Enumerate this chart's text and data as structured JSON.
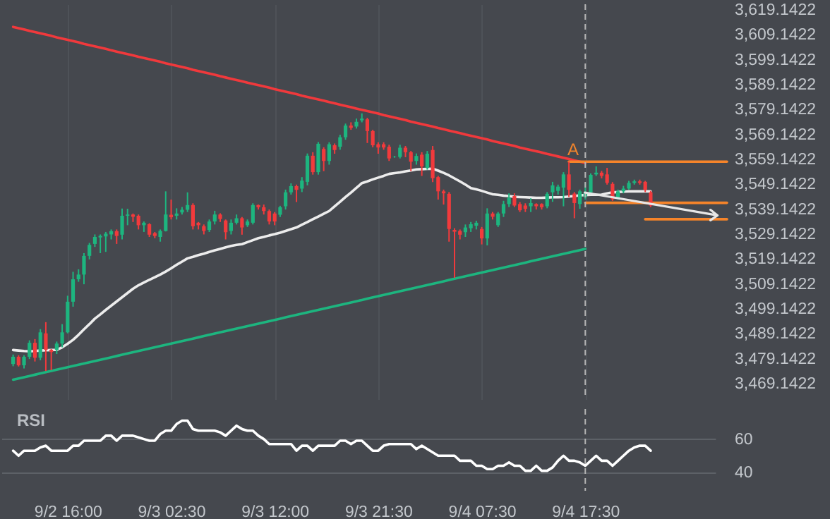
{
  "chart_data": [
    {
      "type": "candlestick",
      "categories": [
        null,
        null,
        null,
        null,
        null,
        null,
        null,
        null,
        null,
        null,
        "9/2 16:00",
        null,
        null,
        null,
        null,
        null,
        null,
        null,
        null,
        null,
        null,
        null,
        null,
        null,
        null,
        null,
        null,
        null,
        null,
        "9/3 02:30",
        null,
        null,
        null,
        null,
        null,
        null,
        null,
        null,
        null,
        null,
        null,
        null,
        null,
        null,
        null,
        null,
        null,
        null,
        "9/3 12:00",
        null,
        null,
        null,
        null,
        null,
        null,
        null,
        null,
        null,
        null,
        null,
        null,
        null,
        null,
        null,
        null,
        null,
        null,
        "9/3 21:30",
        null,
        null,
        null,
        null,
        null,
        null,
        null,
        null,
        null,
        null,
        null,
        null,
        null,
        null,
        null,
        null,
        null,
        null,
        "9/4 07:30",
        null,
        null,
        null,
        null,
        null,
        null,
        null,
        null,
        null,
        null,
        null,
        null,
        null,
        null,
        null,
        null,
        null,
        null,
        "9/4 17:30",
        null,
        null,
        null,
        null,
        null,
        null,
        null,
        null,
        null,
        null,
        null,
        null,
        null,
        null,
        null,
        null,
        null,
        null,
        null,
        null,
        null,
        null,
        null,
        null,
        null,
        null
      ],
      "ohlc": [
        [
          3477.0,
          3480.8,
          3476.1,
          3479.9
        ],
        [
          3479.9,
          3480.5,
          3476.0,
          3476.5
        ],
        [
          3476.5,
          3480.5,
          3475.2,
          3479.9
        ],
        [
          3479.9,
          3486.5,
          3479.0,
          3485.5
        ],
        [
          3485.5,
          3487.0,
          3478.0,
          3479.5
        ],
        [
          3479.5,
          3491.0,
          3478.5,
          3489.7
        ],
        [
          3489.3,
          3493.8,
          3474.2,
          3482.7
        ],
        [
          3482.7,
          3483.0,
          3474.5,
          3481.8
        ],
        [
          3482.7,
          3486.0,
          3481.0,
          3485.2
        ],
        [
          3485.2,
          3493.0,
          3483.7,
          3489.7
        ],
        [
          3489.7,
          3504.4,
          3489.3,
          3502.0
        ],
        [
          3502.0,
          3514.0,
          3500.0,
          3511.0
        ],
        [
          3511.0,
          3515.0,
          3510.0,
          3512.9
        ],
        [
          3512.9,
          3521.5,
          3509.0,
          3520.4
        ],
        [
          3520.4,
          3525.6,
          3519.0,
          3524.8
        ],
        [
          3525.2,
          3529.0,
          3524.0,
          3528.0
        ],
        [
          3527.8,
          3529.0,
          3521.5,
          3528.4
        ],
        [
          3528.2,
          3530.0,
          3522.0,
          3529.3
        ],
        [
          3529.0,
          3531.0,
          3527.0,
          3530.3
        ],
        [
          3530.3,
          3531.0,
          3525.2,
          3528.4
        ],
        [
          3528.9,
          3539.4,
          3527.0,
          3536.5
        ],
        [
          3536.5,
          3539.3,
          3532.7,
          3537.0
        ],
        [
          3537.0,
          3537.4,
          3534.0,
          3536.1
        ],
        [
          3536.5,
          3537.0,
          3531.0,
          3532.7
        ],
        [
          3532.7,
          3534.2,
          3530.0,
          3533.7
        ],
        [
          3533.1,
          3533.5,
          3528.0,
          3528.9
        ],
        [
          3529.5,
          3530.0,
          3527.5,
          3528.4
        ],
        [
          3528.0,
          3531.0,
          3526.1,
          3530.4
        ],
        [
          3530.4,
          3546.3,
          3530.2,
          3537.0
        ],
        [
          3536.9,
          3543.0,
          3535.0,
          3535.9
        ],
        [
          3536.5,
          3539.5,
          3535.0,
          3537.4
        ],
        [
          3537.8,
          3540.0,
          3537.0,
          3538.9
        ],
        [
          3538.9,
          3545.9,
          3538.0,
          3540.8
        ],
        [
          3540.8,
          3541.5,
          3531.0,
          3532.3
        ],
        [
          3533.7,
          3534.0,
          3531.0,
          3532.7
        ],
        [
          3532.3,
          3533.0,
          3529.0,
          3530.4
        ],
        [
          3530.8,
          3535.0,
          3530.0,
          3534.2
        ],
        [
          3534.2,
          3538.5,
          3533.0,
          3537.0
        ],
        [
          3537.0,
          3537.5,
          3534.0,
          3535.2
        ],
        [
          3534.6,
          3535.0,
          3527.0,
          3529.9
        ],
        [
          3530.4,
          3535.0,
          3529.0,
          3533.7
        ],
        [
          3533.7,
          3537.0,
          3533.0,
          3535.5
        ],
        [
          3535.5,
          3536.0,
          3528.9,
          3531.8
        ],
        [
          3532.7,
          3535.0,
          3532.0,
          3534.2
        ],
        [
          3533.7,
          3541.5,
          3533.0,
          3540.8
        ],
        [
          3540.8,
          3541.0,
          3539.0,
          3539.9
        ],
        [
          3539.9,
          3541.0,
          3537.0,
          3538.4
        ],
        [
          3538.4,
          3539.0,
          3533.0,
          3534.2
        ],
        [
          3537.4,
          3538.0,
          3532.7,
          3534.2
        ],
        [
          3536.9,
          3540.5,
          3536.0,
          3539.9
        ],
        [
          3540.3,
          3547.0,
          3539.0,
          3545.9
        ],
        [
          3545.9,
          3549.5,
          3545.0,
          3548.4
        ],
        [
          3548.4,
          3549.0,
          3542.0,
          3546.9
        ],
        [
          3547.4,
          3552.0,
          3546.0,
          3550.6
        ],
        [
          3550.1,
          3561.5,
          3548.7,
          3560.6
        ],
        [
          3560.6,
          3562.0,
          3553.0,
          3554.0
        ],
        [
          3554.0,
          3566.1,
          3553.0,
          3565.4
        ],
        [
          3563.3,
          3564.0,
          3554.4,
          3558.5
        ],
        [
          3558.5,
          3566.0,
          3557.0,
          3565.2
        ],
        [
          3564.8,
          3565.5,
          3561.4,
          3562.9
        ],
        [
          3564.2,
          3569.0,
          3563.0,
          3568.0
        ],
        [
          3568.0,
          3573.5,
          3567.0,
          3572.7
        ],
        [
          3572.7,
          3574.0,
          3571.0,
          3571.8
        ],
        [
          3572.3,
          3575.5,
          3571.5,
          3574.2
        ],
        [
          3574.8,
          3577.6,
          3574.0,
          3575.5
        ],
        [
          3575.2,
          3575.8,
          3565.7,
          3570.5
        ],
        [
          3570.5,
          3571.0,
          3564.0,
          3564.8
        ],
        [
          3565.2,
          3566.0,
          3561.4,
          3563.9
        ],
        [
          3565.2,
          3566.0,
          3563.0,
          3563.9
        ],
        [
          3564.2,
          3565.0,
          3558.5,
          3559.5
        ],
        [
          3560.1,
          3560.5,
          3559.8,
          3560.2
        ],
        [
          3560.1,
          3565.0,
          3559.5,
          3563.8
        ],
        [
          3563.8,
          3564.5,
          3560.0,
          3562.0
        ],
        [
          3562.0,
          3562.5,
          3554.4,
          3558.2
        ],
        [
          3558.5,
          3561.5,
          3557.0,
          3560.5
        ],
        [
          3561.0,
          3562.0,
          3552.5,
          3556.3
        ],
        [
          3555.7,
          3562.5,
          3555.0,
          3561.4
        ],
        [
          3562.9,
          3564.5,
          3550.0,
          3551.6
        ],
        [
          3552.0,
          3552.5,
          3543.0,
          3546.3
        ],
        [
          3546.3,
          3547.0,
          3541.0,
          3545.5
        ],
        [
          3545.3,
          3546.0,
          3526.1,
          3531.2
        ],
        [
          3530.8,
          3531.5,
          3511.6,
          3530.1
        ],
        [
          3530.4,
          3531.0,
          3527.0,
          3528.9
        ],
        [
          3529.9,
          3533.0,
          3528.0,
          3531.8
        ],
        [
          3531.5,
          3534.0,
          3530.0,
          3533.1
        ],
        [
          3532.5,
          3534.5,
          3531.0,
          3533.7
        ],
        [
          3531.2,
          3532.0,
          3525.0,
          3527.4
        ],
        [
          3527.4,
          3539.5,
          3524.6,
          3537.4
        ],
        [
          3537.4,
          3538.0,
          3535.0,
          3536.1
        ],
        [
          3532.7,
          3538.0,
          3532.0,
          3537.4
        ],
        [
          3537.4,
          3542.5,
          3536.0,
          3541.2
        ],
        [
          3541.2,
          3545.5,
          3540.0,
          3543.7
        ],
        [
          3544.4,
          3545.5,
          3540.0,
          3540.6
        ],
        [
          3541.2,
          3542.0,
          3538.0,
          3538.7
        ],
        [
          3540.6,
          3541.5,
          3538.0,
          3539.3
        ],
        [
          3540.3,
          3543.5,
          3538.0,
          3541.6
        ],
        [
          3541.2,
          3541.5,
          3539.0,
          3540.3
        ],
        [
          3541.2,
          3541.5,
          3539.0,
          3539.9
        ],
        [
          3540.3,
          3546.0,
          3539.5,
          3545.3
        ],
        [
          3545.9,
          3550.1,
          3542.1,
          3548.7
        ],
        [
          3546.5,
          3549.0,
          3545.0,
          3548.2
        ],
        [
          3547.8,
          3554.0,
          3540.3,
          3553.1
        ],
        [
          3553.1,
          3558.2,
          3544.0,
          3546.9
        ],
        [
          3545.4,
          3546.0,
          3535.5,
          3541.6
        ],
        [
          3541.2,
          3547.0,
          3539.3,
          3546.3
        ],
        [
          3544.0,
          3549.7,
          3543.0,
          3545.9
        ],
        [
          3545.9,
          3553.5,
          3545.0,
          3552.9
        ],
        [
          3553.1,
          3556.3,
          3552.5,
          3553.8
        ],
        [
          3553.8,
          3554.5,
          3551.5,
          3552.5
        ],
        [
          3553.1,
          3555.7,
          3549.0,
          3549.7
        ],
        [
          3549.3,
          3550.0,
          3542.5,
          3543.1
        ],
        [
          3543.7,
          3547.0,
          3543.0,
          3546.3
        ],
        [
          3546.3,
          3548.5,
          3545.5,
          3547.4
        ],
        [
          3547.4,
          3550.5,
          3547.0,
          3549.7
        ],
        [
          3549.7,
          3551.0,
          3549.0,
          3550.3
        ],
        [
          3550.3,
          3551.0,
          3549.0,
          3549.7
        ],
        [
          3550.1,
          3550.5,
          3546.0,
          3546.9
        ],
        [
          3545.9,
          3546.5,
          3540.0,
          3540.6
        ],
        null,
        null,
        null,
        null,
        null,
        null,
        null,
        null,
        null,
        null,
        null,
        null,
        null,
        null
      ],
      "colors": [
        "#1db57f",
        "#f23a3c",
        "#1db57f",
        "#1db57f",
        "#f23a3c",
        "#1db57f",
        "#f23a3c",
        "#f23a3c",
        "#1db57f",
        "#1db57f",
        "#1db57f",
        "#1db57f",
        "#1db57f",
        "#1db57f",
        "#1db57f",
        "#1db57f",
        "#1db57f",
        "#1db57f",
        "#1db57f",
        "#f23a3c",
        "#1db57f",
        "#1db57f",
        "#f23a3c",
        "#f23a3c",
        "#1db57f",
        "#f23a3c",
        "#f23a3c",
        "#1db57f",
        "#1db57f",
        "#f23a3c",
        "#1db57f",
        "#1db57f",
        "#1db57f",
        "#f23a3c",
        "#f23a3c",
        "#f23a3c",
        "#1db57f",
        "#1db57f",
        "#f23a3c",
        "#f23a3c",
        "#1db57f",
        "#1db57f",
        "#f23a3c",
        "#1db57f",
        "#1db57f",
        "#f23a3c",
        "#f23a3c",
        "#f23a3c",
        "#f23a3c",
        "#1db57f",
        "#1db57f",
        "#1db57f",
        "#f23a3c",
        "#1db57f",
        "#1db57f",
        "#f23a3c",
        "#1db57f",
        "#f23a3c",
        "#1db57f",
        "#f23a3c",
        "#1db57f",
        "#1db57f",
        "#f23a3c",
        "#1db57f",
        "#1db57f",
        "#f23a3c",
        "#f23a3c",
        "#f23a3c",
        "#f23a3c",
        "#f23a3c",
        "#1db57f",
        "#1db57f",
        "#f23a3c",
        "#f23a3c",
        "#1db57f",
        "#f23a3c",
        "#1db57f",
        "#f23a3c",
        "#f23a3c",
        "#f23a3c",
        "#f23a3c",
        "#f23a3c",
        "#f23a3c",
        "#1db57f",
        "#1db57f",
        "#1db57f",
        "#f23a3c",
        "#1db57f",
        "#f23a3c",
        "#1db57f",
        "#1db57f",
        "#1db57f",
        "#f23a3c",
        "#f23a3c",
        "#f23a3c",
        "#1db57f",
        "#f23a3c",
        "#f23a3c",
        "#1db57f",
        "#1db57f",
        "#1db57f",
        "#1db57f",
        "#f23a3c",
        "#f23a3c",
        "#1db57f",
        "#1db57f",
        "#1db57f",
        "#1db57f",
        "#f23a3c",
        "#f23a3c",
        "#f23a3c",
        "#1db57f",
        "#1db57f",
        "#1db57f",
        "#1db57f",
        "#f23a3c",
        "#f23a3c",
        "#f23a3c",
        null,
        null,
        null,
        null,
        null,
        null,
        null,
        null,
        null,
        null,
        null,
        null,
        null,
        null
      ],
      "series": [
        {
          "type": "line",
          "color": "#ececec",
          "values": [
            3482.6,
            3482.4,
            3482.2,
            3482.1,
            3482.2,
            3482.4,
            3482.5,
            3482.6,
            3482.7,
            3483.7,
            3485.1,
            3486.7,
            3488.7,
            3490.9,
            3493.0,
            3495.2,
            3496.9,
            3498.7,
            3500.4,
            3502.1,
            3503.8,
            3505.5,
            3507.2,
            3508.6,
            3509.7,
            3510.8,
            3511.8,
            3512.9,
            3514.1,
            3515.4,
            3516.8,
            3518.1,
            3519.4,
            3520.0,
            3520.7,
            3521.3,
            3522.0,
            3522.6,
            3523.2,
            3523.8,
            3524.4,
            3524.8,
            3525.1,
            3525.9,
            3526.7,
            3527.5,
            3528.0,
            3528.6,
            3529.1,
            3529.7,
            3530.4,
            3531.1,
            3531.8,
            3532.9,
            3534.0,
            3535.1,
            3536.2,
            3537.3,
            3538.4,
            3540.3,
            3542.1,
            3544.0,
            3545.8,
            3547.7,
            3549.6,
            3550.3,
            3551.1,
            3551.8,
            3552.5,
            3553.3,
            3553.6,
            3553.9,
            3554.3,
            3554.7,
            3555.1,
            3555.2,
            3555.3,
            3555.4,
            3554.6,
            3553.7,
            3552.7,
            3551.5,
            3550.3,
            3549.0,
            3547.6,
            3547.1,
            3546.5,
            3545.8,
            3545.1,
            3544.9,
            3544.6,
            3544.4,
            3544.1,
            3544.0,
            3543.9,
            3543.8,
            3543.7,
            3543.7,
            3543.8,
            3543.9,
            3543.9,
            3544.0,
            3544.2,
            3544.4,
            3544.7,
            3544.8,
            3544.9,
            3544.9,
            3545.0,
            3545.5,
            3545.9,
            3546.0,
            3546.2,
            3546.3,
            3546.3,
            3546.3,
            3546.3,
            3546.3,
            null,
            null,
            null,
            null,
            null,
            null,
            null,
            null,
            null,
            null,
            null,
            null,
            null,
            null
          ]
        },
        {
          "type": "line",
          "color": "#f0393c",
          "values": [
            3612.3,
            3611.8,
            3611.3,
            3610.7,
            3610.2,
            3609.7,
            3609.2,
            3608.7,
            3608.1,
            3607.6,
            3607.1,
            3606.6,
            3606.1,
            3605.5,
            3605.0,
            3604.5,
            3604.0,
            3603.5,
            3602.9,
            3602.4,
            3601.9,
            3601.4,
            3600.9,
            3600.3,
            3599.8,
            3599.3,
            3598.8,
            3598.3,
            3597.7,
            3597.2,
            3596.7,
            3596.2,
            3595.7,
            3595.1,
            3594.6,
            3594.1,
            3593.6,
            3593.1,
            3592.5,
            3592.0,
            3591.5,
            3591.0,
            3590.5,
            3589.9,
            3589.4,
            3588.9,
            3588.4,
            3587.9,
            3587.3,
            3586.8,
            3586.3,
            3585.8,
            3585.3,
            3584.7,
            3584.2,
            3583.7,
            3583.2,
            3582.7,
            3582.1,
            3581.6,
            3581.1,
            3580.6,
            3580.1,
            3579.5,
            3579.0,
            3578.5,
            3578.0,
            3577.5,
            3576.9,
            3576.4,
            3575.9,
            3575.4,
            3574.9,
            3574.3,
            3573.8,
            3573.3,
            3572.8,
            3572.3,
            3571.7,
            3571.2,
            3570.7,
            3570.2,
            3569.7,
            3569.1,
            3568.6,
            3568.1,
            3567.6,
            3567.1,
            3566.5,
            3566.0,
            3565.5,
            3565.0,
            3564.5,
            3563.9,
            3563.4,
            3562.9,
            3562.4,
            3561.9,
            3561.3,
            3560.8,
            3560.3,
            3559.8,
            3559.3,
            3558.7,
            3558.2,
            3557.7,
            null,
            null,
            null,
            null,
            null,
            null,
            null,
            null,
            null,
            null,
            null,
            null,
            null,
            null,
            null,
            null,
            null,
            null,
            null,
            null,
            null,
            null,
            null,
            null,
            null,
            null
          ]
        },
        {
          "type": "line",
          "color": "#1db57f",
          "values": [
            3470.7,
            3471.2,
            3471.7,
            3472.2,
            3472.7,
            3473.2,
            3473.7,
            3474.2,
            3474.7,
            3475.2,
            3475.7,
            3476.2,
            3476.7,
            3477.2,
            3477.7,
            3478.2,
            3478.7,
            3479.2,
            3479.7,
            3480.2,
            3480.7,
            3481.2,
            3481.7,
            3482.2,
            3482.7,
            3483.2,
            3483.7,
            3484.2,
            3484.7,
            3485.2,
            3485.7,
            3486.2,
            3486.7,
            3487.2,
            3487.7,
            3488.2,
            3488.7,
            3489.2,
            3489.7,
            3490.2,
            3490.7,
            3491.2,
            3491.7,
            3492.2,
            3492.7,
            3493.2,
            3493.7,
            3494.2,
            3494.7,
            3495.2,
            3495.7,
            3496.2,
            3496.7,
            3497.2,
            3497.7,
            3498.2,
            3498.7,
            3499.2,
            3499.7,
            3500.2,
            3500.7,
            3501.2,
            3501.7,
            3502.2,
            3502.7,
            3503.2,
            3503.7,
            3504.2,
            3504.7,
            3505.2,
            3505.7,
            3506.2,
            3506.7,
            3507.2,
            3507.7,
            3508.2,
            3508.7,
            3509.2,
            3509.7,
            3510.2,
            3510.7,
            3511.2,
            3511.7,
            3512.2,
            3512.7,
            3513.2,
            3513.7,
            3514.2,
            3514.7,
            3515.2,
            3515.7,
            3516.2,
            3516.7,
            3517.2,
            3517.7,
            3518.2,
            3518.7,
            3519.2,
            3519.7,
            3520.2,
            3520.7,
            3521.2,
            3521.7,
            3522.2,
            3522.7,
            3523.2,
            null,
            null,
            null,
            null,
            null,
            null,
            null,
            null,
            null,
            null,
            null,
            null,
            null,
            null,
            null,
            null,
            null,
            null,
            null,
            null,
            null,
            null,
            null,
            null,
            null,
            null
          ]
        },
        {
          "type": "line",
          "color": "#f5842a",
          "values": [
            null,
            null,
            null,
            null,
            null,
            null,
            null,
            null,
            null,
            null,
            null,
            null,
            null,
            null,
            null,
            null,
            null,
            null,
            null,
            null,
            null,
            null,
            null,
            null,
            null,
            null,
            null,
            null,
            null,
            null,
            null,
            null,
            null,
            null,
            null,
            null,
            null,
            null,
            null,
            null,
            null,
            null,
            null,
            null,
            null,
            null,
            null,
            null,
            null,
            null,
            null,
            null,
            null,
            null,
            null,
            null,
            null,
            null,
            null,
            null,
            null,
            null,
            null,
            null,
            null,
            null,
            null,
            null,
            null,
            null,
            null,
            null,
            null,
            null,
            null,
            null,
            null,
            null,
            null,
            null,
            null,
            null,
            null,
            null,
            null,
            null,
            null,
            null,
            null,
            null,
            null,
            null,
            null,
            null,
            null,
            null,
            null,
            null,
            null,
            null,
            null,
            null,
            3558.2,
            3558.2,
            3558.2,
            3558.2,
            3558.2,
            3558.2,
            3558.2,
            3558.2,
            3558.2,
            3558.2,
            3558.2,
            3558.2,
            3558.2,
            3558.2,
            3558.2,
            3558.2,
            3558.2,
            3558.2,
            3558.2,
            3558.2,
            3558.2,
            3558.2,
            3558.2,
            3558.2,
            3558.2,
            3558.2,
            3558.2,
            3558.2,
            3558.2,
            3558.2
          ]
        },
        {
          "type": "line",
          "color": "#f5842a",
          "values": [
            null,
            null,
            null,
            null,
            null,
            null,
            null,
            null,
            null,
            null,
            null,
            null,
            null,
            null,
            null,
            null,
            null,
            null,
            null,
            null,
            null,
            null,
            null,
            null,
            null,
            null,
            null,
            null,
            null,
            null,
            null,
            null,
            null,
            null,
            null,
            null,
            null,
            null,
            null,
            null,
            null,
            null,
            null,
            null,
            null,
            null,
            null,
            null,
            null,
            null,
            null,
            null,
            null,
            null,
            null,
            null,
            null,
            null,
            null,
            null,
            null,
            null,
            null,
            null,
            null,
            null,
            null,
            null,
            null,
            null,
            null,
            null,
            null,
            null,
            null,
            null,
            null,
            null,
            null,
            null,
            null,
            null,
            null,
            null,
            null,
            null,
            null,
            null,
            null,
            null,
            null,
            null,
            null,
            null,
            null,
            null,
            null,
            null,
            null,
            null,
            null,
            null,
            null,
            null,
            null,
            3541.7,
            3541.7,
            3541.7,
            3541.7,
            3541.7,
            3541.7,
            3541.7,
            3541.7,
            3541.7,
            3541.7,
            3541.7,
            3541.7,
            3541.7,
            3541.7,
            3541.7,
            3541.7,
            3541.7,
            3541.7,
            3541.7,
            3541.7,
            3541.7,
            3541.7,
            3541.7,
            3541.7,
            3541.7,
            3541.7,
            3541.7
          ]
        },
        {
          "type": "line",
          "color": "#f5842a",
          "values": [
            null,
            null,
            null,
            null,
            null,
            null,
            null,
            null,
            null,
            null,
            null,
            null,
            null,
            null,
            null,
            null,
            null,
            null,
            null,
            null,
            null,
            null,
            null,
            null,
            null,
            null,
            null,
            null,
            null,
            null,
            null,
            null,
            null,
            null,
            null,
            null,
            null,
            null,
            null,
            null,
            null,
            null,
            null,
            null,
            null,
            null,
            null,
            null,
            null,
            null,
            null,
            null,
            null,
            null,
            null,
            null,
            null,
            null,
            null,
            null,
            null,
            null,
            null,
            null,
            null,
            null,
            null,
            null,
            null,
            null,
            null,
            null,
            null,
            null,
            null,
            null,
            null,
            null,
            null,
            null,
            null,
            null,
            null,
            null,
            null,
            null,
            null,
            null,
            null,
            null,
            null,
            null,
            null,
            null,
            null,
            null,
            null,
            null,
            null,
            null,
            null,
            null,
            null,
            null,
            null,
            null,
            null,
            null,
            null,
            null,
            null,
            null,
            null,
            null,
            null,
            null,
            3535.1,
            3535.1,
            3535.1,
            3535.1,
            3535.1,
            3535.1,
            3535.1,
            3535.1,
            3535.1,
            3535.1,
            3535.1,
            3535.1,
            3535.1,
            3535.1,
            3535.1,
            3535.1
          ]
        }
      ],
      "ylim": [
        3462.9,
        3621.4
      ],
      "yticks": [
        {
          "value": 3469.1422,
          "label": "3,469.1422"
        },
        {
          "value": 3479.1422,
          "label": "3,479.1422"
        },
        {
          "value": 3489.1422,
          "label": "3,489.1422"
        },
        {
          "value": 3499.1422,
          "label": "3,499.1422"
        },
        {
          "value": 3509.1422,
          "label": "3,509.1422"
        },
        {
          "value": 3519.1422,
          "label": "3,519.1422"
        },
        {
          "value": 3529.1422,
          "label": "3,529.1422"
        },
        {
          "value": 3539.1422,
          "label": "3,539.1422"
        },
        {
          "value": 3549.1422,
          "label": "3,549.1422"
        },
        {
          "value": 3559.1422,
          "label": "3,559.1422"
        },
        {
          "value": 3569.1422,
          "label": "3,569.1422"
        },
        {
          "value": 3579.1422,
          "label": "3,579.1422"
        },
        {
          "value": 3589.1422,
          "label": "3,589.1422"
        },
        {
          "value": 3599.1422,
          "label": "3,599.1422"
        },
        {
          "value": 3609.1422,
          "label": "3,609.1422"
        },
        {
          "value": 3619.1422,
          "label": "3,619.1422"
        }
      ],
      "tick_labels": "y",
      "grid": "x",
      "ref_lines": [
        {
          "axis": "x",
          "value": "9/4 17:30",
          "color": "#b4b4b4",
          "line_style": "dashed"
        }
      ],
      "annotations": [
        "A"
      ]
    },
    {
      "type": "line",
      "title": "RSI",
      "categories": [
        null,
        null,
        null,
        null,
        null,
        null,
        null,
        null,
        null,
        null,
        "9/2 16:00",
        null,
        null,
        null,
        null,
        null,
        null,
        null,
        null,
        null,
        null,
        null,
        null,
        null,
        null,
        null,
        null,
        null,
        null,
        "9/3 02:30",
        null,
        null,
        null,
        null,
        null,
        null,
        null,
        null,
        null,
        null,
        null,
        null,
        null,
        null,
        null,
        null,
        null,
        null,
        "9/3 12:00",
        null,
        null,
        null,
        null,
        null,
        null,
        null,
        null,
        null,
        null,
        null,
        null,
        null,
        null,
        null,
        null,
        null,
        null,
        "9/3 21:30",
        null,
        null,
        null,
        null,
        null,
        null,
        null,
        null,
        null,
        null,
        null,
        null,
        null,
        null,
        null,
        null,
        null,
        null,
        "9/4 07:30",
        null,
        null,
        null,
        null,
        null,
        null,
        null,
        null,
        null,
        null,
        null,
        null,
        null,
        null,
        null,
        null,
        null,
        null,
        "9/4 17:30",
        null,
        null,
        null,
        null,
        null,
        null,
        null,
        null,
        null,
        null,
        null,
        null,
        null,
        null,
        null,
        null,
        null,
        null,
        null,
        null,
        null,
        null,
        null,
        null,
        null,
        null
      ],
      "series": [
        {
          "color": "#ffffff",
          "values": [
            53,
            50,
            53,
            53,
            53,
            55,
            56,
            53,
            53,
            53,
            53,
            56,
            56,
            59,
            59,
            59,
            59,
            62,
            62,
            59,
            62,
            62,
            62,
            61,
            60,
            59,
            59,
            63,
            65,
            65,
            69,
            71,
            71,
            66,
            65,
            65,
            65,
            65,
            64,
            62,
            65,
            68,
            66,
            65,
            65,
            62,
            60,
            57,
            57,
            57,
            57,
            57,
            53,
            56,
            56,
            53,
            56,
            56,
            56,
            56,
            59,
            59,
            57,
            59,
            59,
            56,
            53,
            53,
            56,
            57,
            57,
            57,
            57,
            57,
            54,
            56,
            54,
            52,
            50,
            50,
            50,
            50,
            47,
            47,
            47,
            44,
            44,
            42,
            42,
            44,
            44,
            46,
            44,
            44,
            41,
            41,
            44,
            41,
            41,
            43,
            47,
            50,
            47,
            47,
            46,
            44,
            47,
            50,
            47,
            47,
            44,
            47,
            50,
            53,
            55,
            56,
            56,
            53,
            null,
            null,
            null,
            null,
            null,
            null,
            null,
            null,
            null,
            null,
            null,
            null,
            null,
            null
          ]
        }
      ],
      "ylim": [
        29,
        78
      ],
      "yticks": [
        40,
        60
      ],
      "grid": "y",
      "ref_lines": [
        {
          "axis": "x",
          "value": "9/4 17:30",
          "color": "#b4b4b4",
          "line_style": "dashed"
        }
      ]
    }
  ]
}
